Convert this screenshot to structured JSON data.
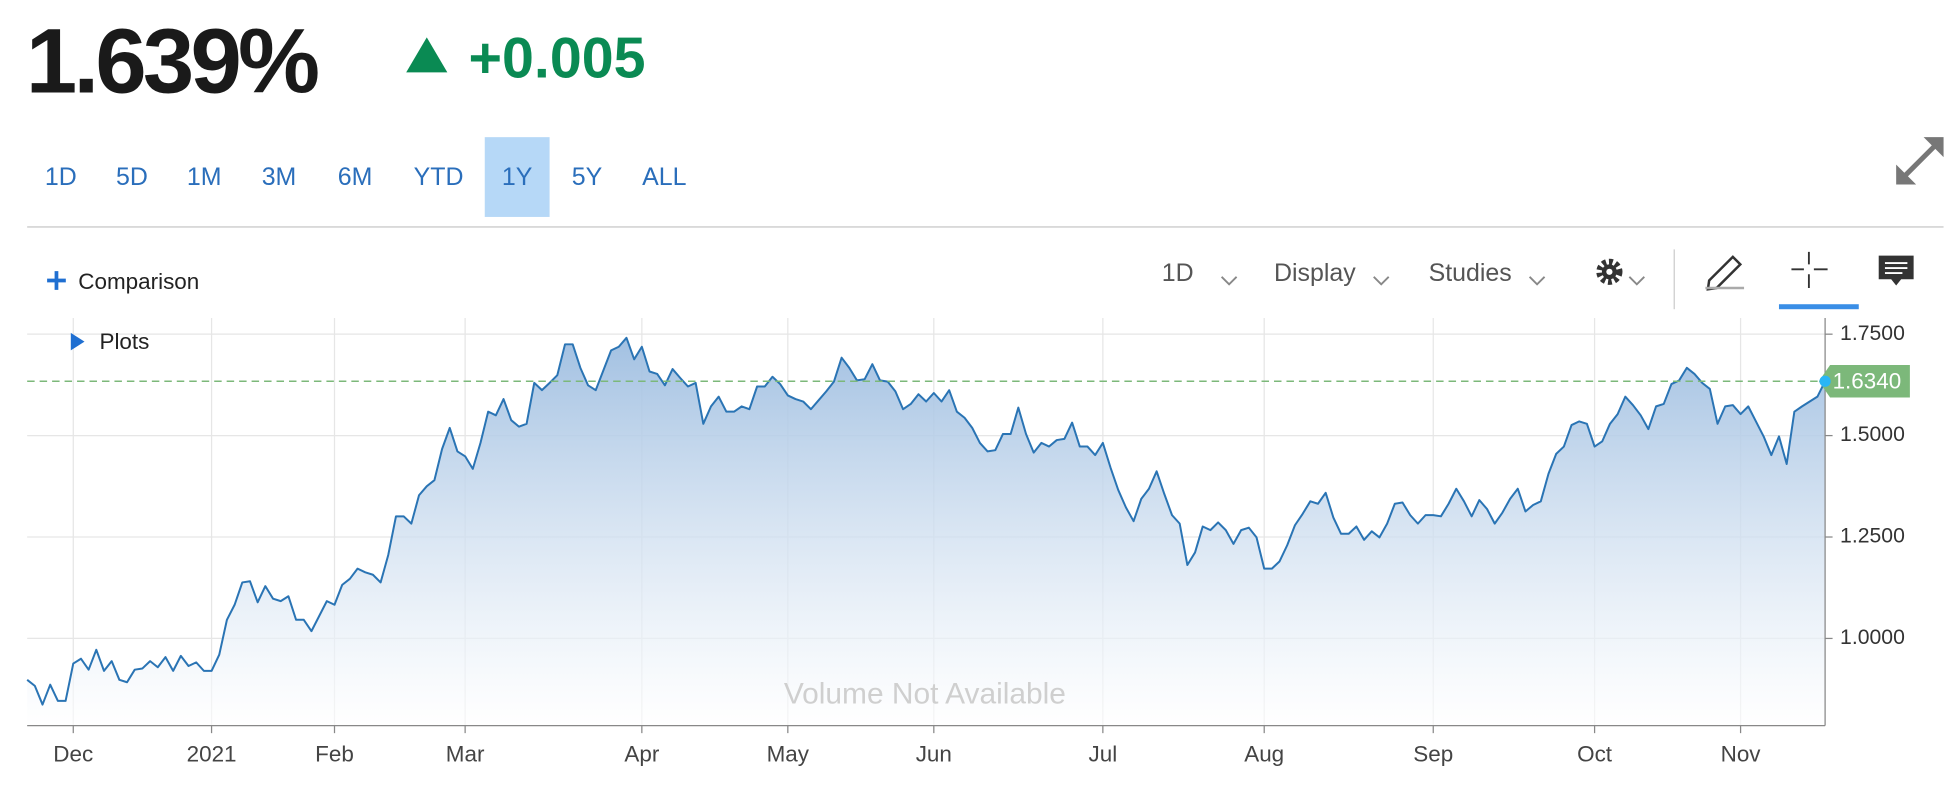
{
  "header": {
    "price": "1.639%",
    "change": "+0.005"
  },
  "range_buttons": [
    {
      "label": "1D",
      "selected": false
    },
    {
      "label": "5D",
      "selected": false
    },
    {
      "label": "1M",
      "selected": false
    },
    {
      "label": "3M",
      "selected": false
    },
    {
      "label": "6M",
      "selected": false
    },
    {
      "label": "YTD",
      "selected": false
    },
    {
      "label": "1Y",
      "selected": true
    },
    {
      "label": "5Y",
      "selected": false
    },
    {
      "label": "ALL",
      "selected": false
    }
  ],
  "toolbar": {
    "comparison": "Comparison",
    "interval": "1D",
    "display": "Display",
    "studies": "Studies"
  },
  "chart_data": {
    "type": "area",
    "plots_label": "Plots",
    "volume_note": "Volume Not Available",
    "color": "#2a74b4",
    "fill_color": "#9dbde0",
    "grid": true,
    "categories": [
      null,
      null,
      null,
      null,
      null,
      null,
      "Dec",
      null,
      null,
      null,
      null,
      null,
      null,
      null,
      null,
      null,
      null,
      null,
      null,
      null,
      null,
      null,
      null,
      null,
      "2021",
      null,
      null,
      null,
      null,
      null,
      null,
      null,
      null,
      null,
      null,
      null,
      null,
      null,
      null,
      null,
      "Feb",
      null,
      null,
      null,
      null,
      null,
      null,
      null,
      null,
      null,
      null,
      null,
      null,
      null,
      null,
      null,
      null,
      "Mar",
      null,
      null,
      null,
      null,
      null,
      null,
      null,
      null,
      null,
      null,
      null,
      null,
      null,
      null,
      null,
      null,
      null,
      null,
      null,
      null,
      null,
      null,
      "Apr",
      null,
      null,
      null,
      null,
      null,
      null,
      null,
      null,
      null,
      null,
      null,
      null,
      null,
      null,
      null,
      null,
      null,
      null,
      "May",
      null,
      null,
      null,
      null,
      null,
      null,
      null,
      null,
      null,
      null,
      null,
      null,
      null,
      null,
      null,
      null,
      null,
      null,
      "Jun",
      null,
      null,
      null,
      null,
      null,
      null,
      null,
      null,
      null,
      null,
      null,
      null,
      null,
      null,
      null,
      null,
      null,
      null,
      null,
      null,
      null,
      "Jul",
      null,
      null,
      null,
      null,
      null,
      null,
      null,
      null,
      null,
      null,
      null,
      null,
      null,
      null,
      null,
      null,
      null,
      null,
      null,
      null,
      "Aug",
      null,
      null,
      null,
      null,
      null,
      null,
      null,
      null,
      null,
      null,
      null,
      null,
      null,
      null,
      null,
      null,
      null,
      null,
      null,
      null,
      null,
      "Sep",
      null,
      null,
      null,
      null,
      null,
      null,
      null,
      null,
      null,
      null,
      null,
      null,
      null,
      null,
      null,
      null,
      null,
      null,
      null,
      null,
      "Oct",
      null,
      null,
      null,
      null,
      null,
      null,
      null,
      null,
      null,
      null,
      null,
      null,
      null,
      null,
      null,
      null,
      null,
      null,
      "Nov",
      null,
      null,
      null,
      null,
      null,
      null,
      null,
      null,
      null,
      null,
      null
    ],
    "values": [
      0.898,
      0.883,
      0.837,
      0.886,
      0.846,
      0.846,
      0.938,
      0.95,
      0.923,
      0.972,
      0.92,
      0.944,
      0.898,
      0.892,
      0.923,
      0.926,
      0.944,
      0.929,
      0.954,
      0.92,
      0.957,
      0.932,
      0.941,
      0.92,
      0.92,
      0.96,
      1.046,
      1.083,
      1.138,
      1.141,
      1.089,
      1.129,
      1.098,
      1.092,
      1.104,
      1.046,
      1.046,
      1.018,
      1.055,
      1.092,
      1.083,
      1.132,
      1.147,
      1.172,
      1.163,
      1.157,
      1.138,
      1.206,
      1.301,
      1.301,
      1.283,
      1.353,
      1.375,
      1.39,
      1.467,
      1.519,
      1.461,
      1.449,
      1.418,
      1.482,
      1.559,
      1.55,
      1.59,
      1.538,
      1.522,
      1.529,
      1.63,
      1.612,
      1.63,
      1.649,
      1.725,
      1.725,
      1.667,
      1.624,
      1.612,
      1.661,
      1.71,
      1.719,
      1.741,
      1.688,
      1.719,
      1.658,
      1.652,
      1.624,
      1.664,
      1.642,
      1.621,
      1.63,
      1.529,
      1.572,
      1.596,
      1.559,
      1.559,
      1.572,
      1.565,
      1.621,
      1.621,
      1.645,
      1.627,
      1.599,
      1.59,
      1.584,
      1.565,
      1.587,
      1.609,
      1.633,
      1.692,
      1.667,
      1.636,
      1.639,
      1.676,
      1.636,
      1.633,
      1.609,
      1.565,
      1.578,
      1.602,
      1.584,
      1.605,
      1.584,
      1.612,
      1.559,
      1.544,
      1.519,
      1.482,
      1.461,
      1.464,
      1.504,
      1.504,
      1.569,
      1.504,
      1.458,
      1.482,
      1.473,
      1.489,
      1.492,
      1.532,
      1.473,
      1.473,
      1.452,
      1.482,
      1.421,
      1.366,
      1.323,
      1.289,
      1.344,
      1.369,
      1.412,
      1.356,
      1.304,
      1.283,
      1.181,
      1.212,
      1.276,
      1.267,
      1.286,
      1.267,
      1.233,
      1.267,
      1.273,
      1.249,
      1.172,
      1.172,
      1.19,
      1.23,
      1.279,
      1.307,
      1.338,
      1.332,
      1.359,
      1.298,
      1.258,
      1.258,
      1.276,
      1.243,
      1.264,
      1.249,
      1.283,
      1.332,
      1.335,
      1.304,
      1.283,
      1.304,
      1.304,
      1.301,
      1.332,
      1.369,
      1.338,
      1.301,
      1.341,
      1.319,
      1.283,
      1.31,
      1.344,
      1.369,
      1.313,
      1.329,
      1.338,
      1.406,
      1.455,
      1.473,
      1.526,
      1.535,
      1.529,
      1.473,
      1.486,
      1.529,
      1.553,
      1.596,
      1.575,
      1.55,
      1.516,
      1.572,
      1.578,
      1.627,
      1.636,
      1.667,
      1.652,
      1.63,
      1.615,
      1.529,
      1.572,
      1.575,
      1.553,
      1.572,
      1.535,
      1.498,
      1.452,
      1.498,
      1.43,
      1.559,
      1.572,
      1.584,
      1.596,
      1.634
    ],
    "ylim": [
      0.785,
      1.79
    ],
    "yticks": [
      {
        "value": 1,
        "label": "1.0000"
      },
      {
        "value": 1.25,
        "label": "1.2500"
      },
      {
        "value": 1.5,
        "label": "1.5000"
      },
      {
        "value": 1.75,
        "label": "1.7500"
      }
    ],
    "current": {
      "value": 1.634,
      "label": "1.6340",
      "color": "#7cb87a"
    }
  }
}
